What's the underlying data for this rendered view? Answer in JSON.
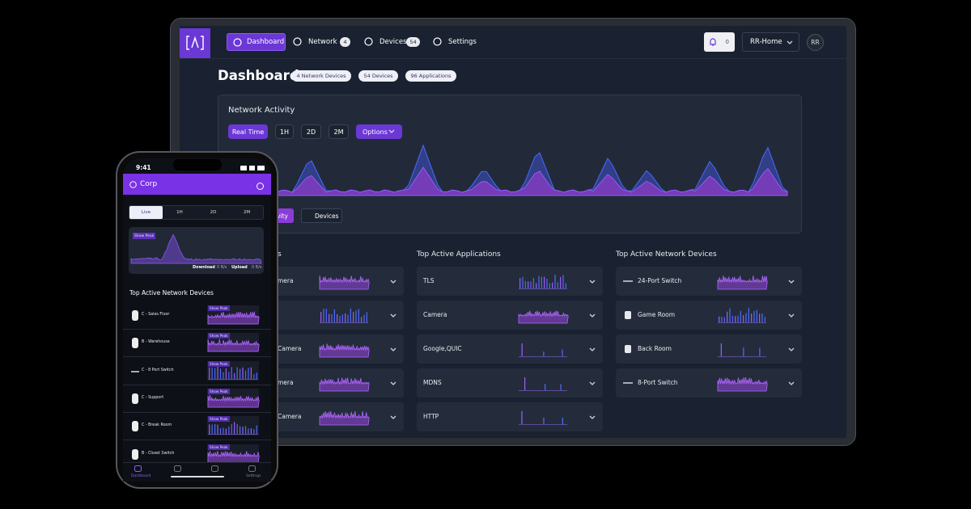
{
  "tablet": {
    "nav": {
      "items": [
        {
          "label": "Dashboard"
        },
        {
          "label": "Network",
          "badge": 4
        },
        {
          "label": "Devices",
          "badge": 54
        },
        {
          "label": "Settings"
        }
      ],
      "alerts": 0,
      "site": "RR-Home",
      "user": "RR"
    },
    "header": {
      "title": "Dashboard",
      "chips": [
        "4 Network Devices",
        "54 Devices",
        "96 Applications"
      ]
    },
    "activity": {
      "title": "Network Activity",
      "ranges": [
        "Real Time",
        "1H",
        "2D",
        "2M"
      ],
      "options": "Options",
      "legend": [
        "Activity",
        "Devices"
      ]
    },
    "columns": [
      {
        "title": "s",
        "rows": [
          "mera",
          null,
          "Camera",
          "mera",
          "Camera"
        ]
      },
      {
        "title": "Top Active Applications",
        "rows": [
          "TLS",
          "Camera",
          "Google,QUIC",
          "MDNS",
          "HTTP"
        ]
      },
      {
        "title": "Top Active Network Devices",
        "rows": [
          "24-Port Switch",
          "Game Room",
          "Back Room",
          "8-Port Switch"
        ]
      }
    ]
  },
  "phone": {
    "time": "9:41",
    "title": "Corp",
    "tabs": [
      "Live",
      "1H",
      "2D",
      "2M"
    ],
    "chart": {
      "peak": "Show Peak",
      "download": "Download",
      "download_rate": "0 B/s",
      "upload": "Upload",
      "upload_rate": "0 B/s"
    },
    "list_title": "Top Active Network Devices",
    "devices": [
      {
        "name": "C - Sales Floor",
        "peak": "Show Peak"
      },
      {
        "name": "B - Warehouse",
        "peak": "Show Peak"
      },
      {
        "name": "C - 8 Port Switch",
        "peak": "Show Peak"
      },
      {
        "name": "C - Support",
        "peak": "Show Peak"
      },
      {
        "name": "C - Break Room",
        "peak": "Show Peak"
      },
      {
        "name": "B - Closet Switch",
        "peak": "Show Peak"
      }
    ],
    "nav": [
      "Dashboard",
      "Settings"
    ]
  }
}
